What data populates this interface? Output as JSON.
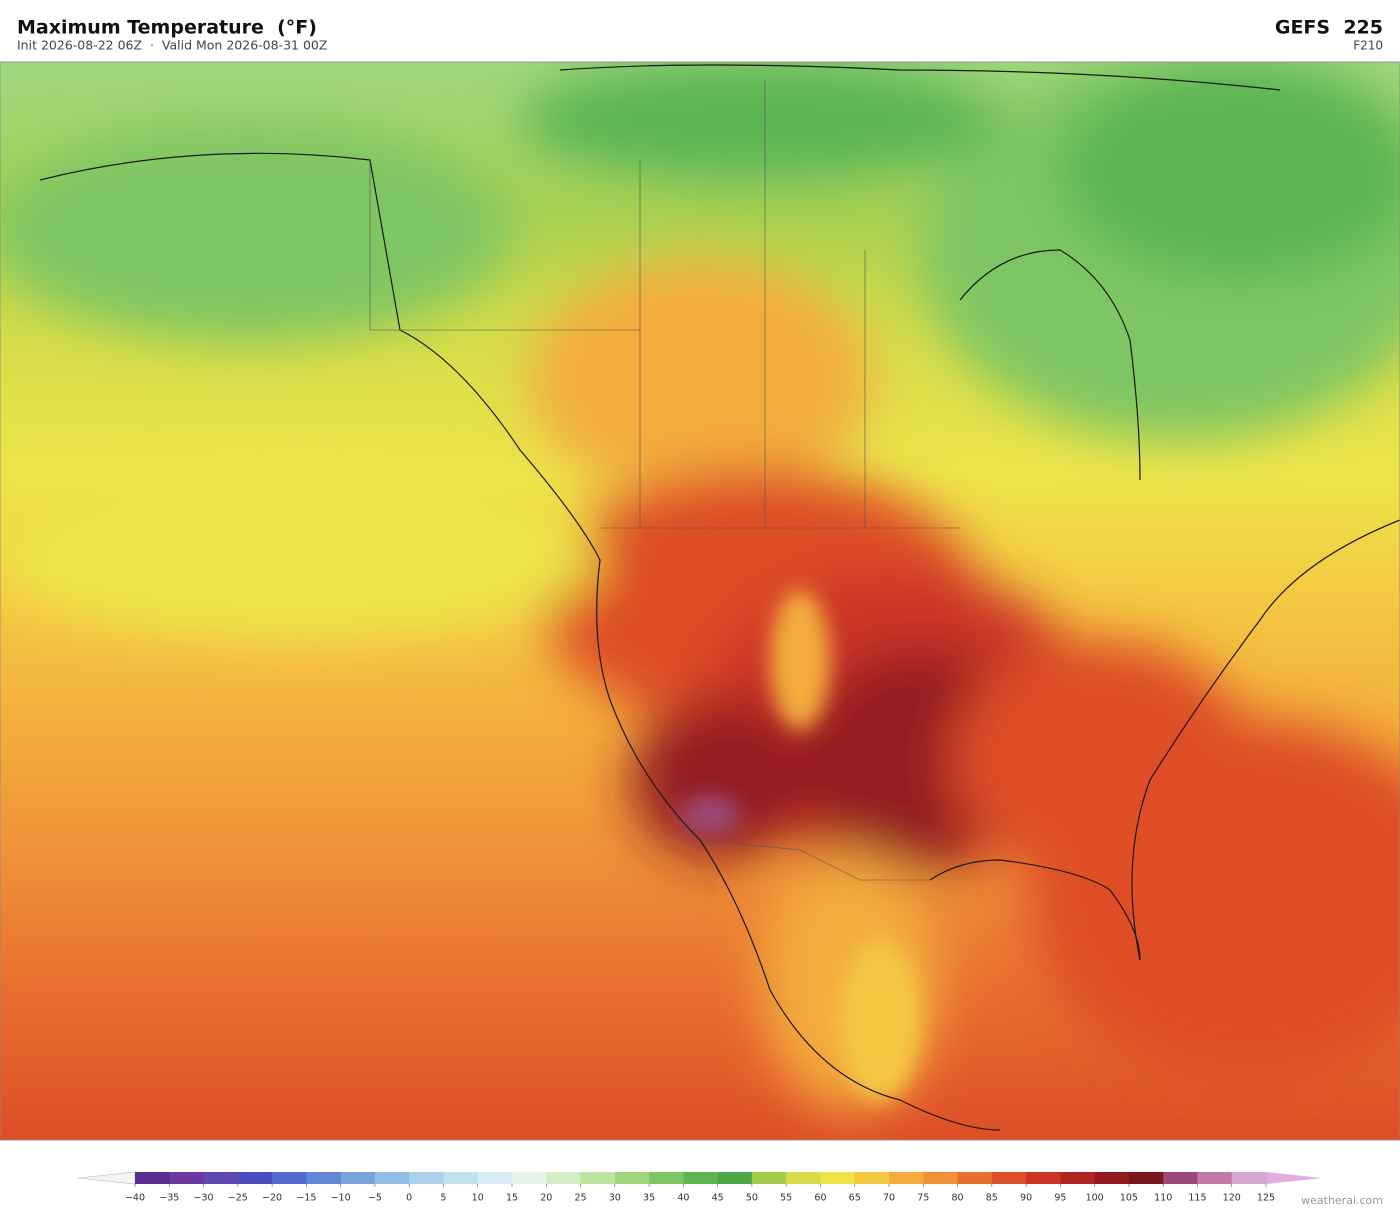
{
  "header": {
    "title": "Maximum Temperature  (°F)",
    "subtitle": "Init 2026-08-22 06Z  ·  Valid Mon 2026-08-31 00Z",
    "model": "GEFS  225",
    "forecast_hour": "F210"
  },
  "colorbar": {
    "ticks": [
      {
        "value": -40,
        "label": "−40"
      },
      {
        "value": -35,
        "label": "−35"
      },
      {
        "value": -30,
        "label": "−30"
      },
      {
        "value": -25,
        "label": "−25"
      },
      {
        "value": -20,
        "label": "−20"
      },
      {
        "value": -15,
        "label": "−15"
      },
      {
        "value": -10,
        "label": "−10"
      },
      {
        "value": -5,
        "label": "−5"
      },
      0,
      5,
      10,
      15,
      20,
      25,
      30,
      35,
      40,
      45,
      50,
      55,
      60,
      65,
      70,
      75,
      80,
      85,
      90,
      95,
      100,
      105,
      110,
      115,
      120,
      125
    ],
    "colors": [
      "#5a2d91",
      "#6a3aa0",
      "#6048b0",
      "#4a4cc0",
      "#4f6ad0",
      "#6486d6",
      "#7aa3dc",
      "#92bde4",
      "#aad2ea",
      "#c2e2ef",
      "#d8ecf2",
      "#e6f3ea",
      "#d4ecc8",
      "#bde3a0",
      "#9fd77f",
      "#7ec663",
      "#5cb552",
      "#4aa848",
      "#a0cc4a",
      "#d6dc48",
      "#ede44a",
      "#f5c842",
      "#f3ac3c",
      "#ef9038",
      "#e86e2e",
      "#de4e28",
      "#cc3426",
      "#b02422",
      "#941a20",
      "#7a161e",
      "#9c4876",
      "#c27aaa",
      "#d8a4d0"
    ],
    "under_color": "#f4f4f4",
    "over_color": "#e2aee0"
  },
  "watermark": "weatherai.com"
}
